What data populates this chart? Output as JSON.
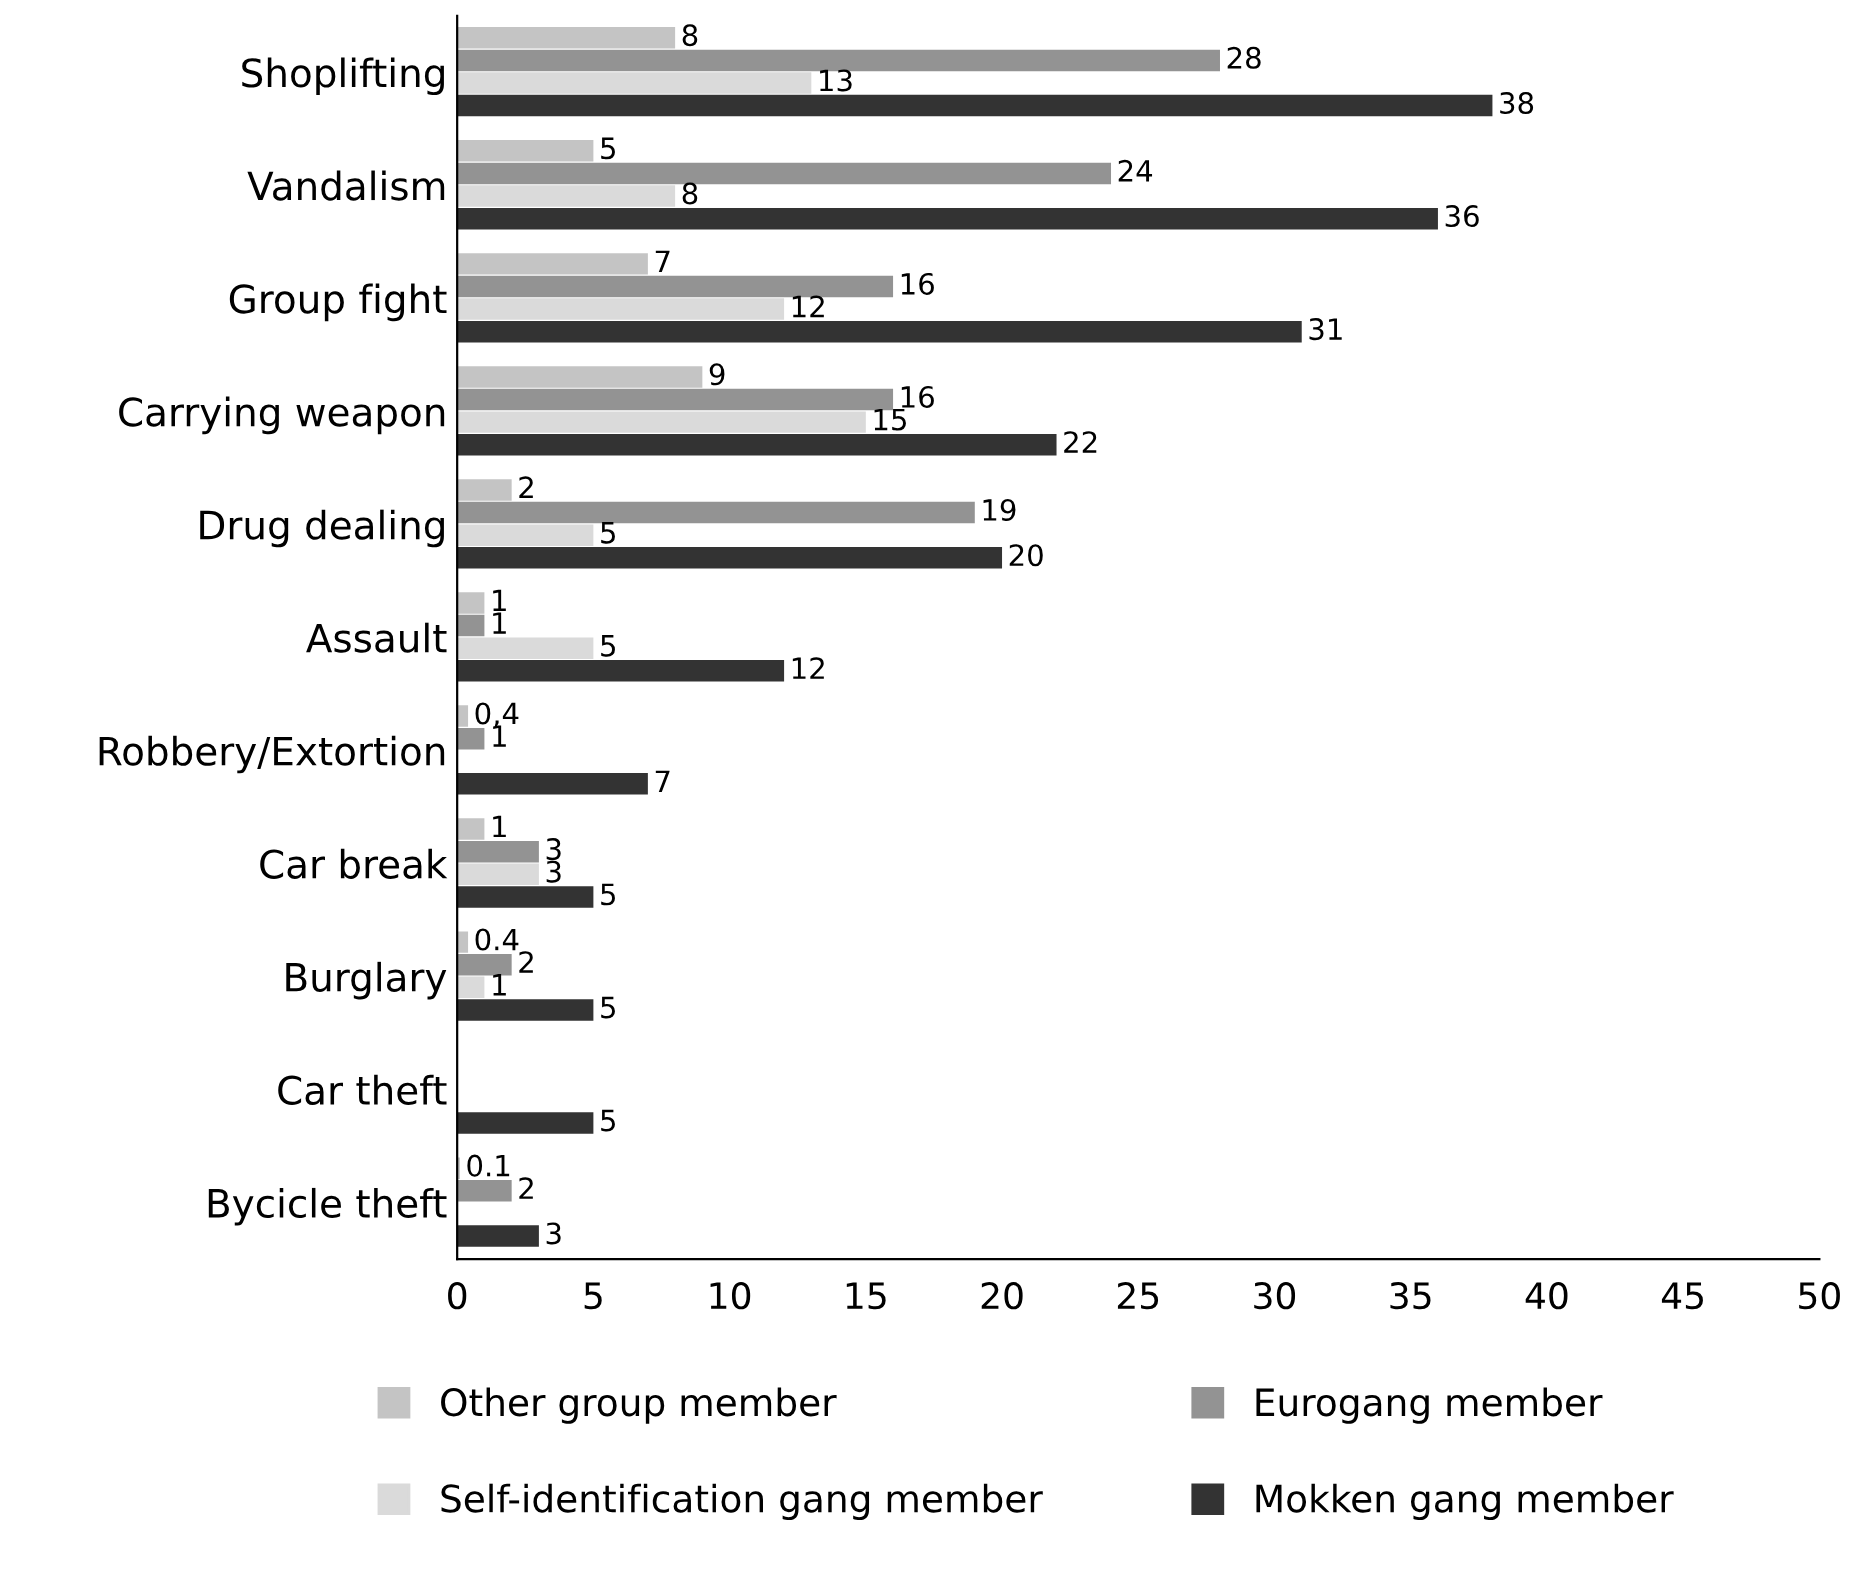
{
  "chart_data": {
    "type": "bar",
    "orientation": "horizontal",
    "categories": [
      "Shoplifting",
      "Vandalism",
      "Group fight",
      "Carrying weapon",
      "Drug dealing",
      "Assault",
      "Robbery/Extortion",
      "Car break",
      "Burglary",
      "Car theft",
      "Bycicle theft"
    ],
    "series": [
      {
        "name": "Other group member",
        "color": "#c4c4c4",
        "values": [
          8,
          5,
          7,
          9,
          2,
          1,
          0.4,
          1,
          0.4,
          null,
          0.1
        ],
        "value_labels": [
          "8",
          "5",
          "7",
          "9",
          "2",
          "1",
          "0,4",
          "1",
          "0.4",
          null,
          "0.1"
        ]
      },
      {
        "name": "Eurogang member",
        "color": "#939393",
        "values": [
          28,
          24,
          16,
          16,
          19,
          1,
          1,
          3,
          2,
          null,
          2
        ],
        "value_labels": [
          "28",
          "24",
          "16",
          "16",
          "19",
          "1",
          "1",
          "3",
          "2",
          null,
          "2"
        ]
      },
      {
        "name": "Self-identification gang member",
        "color": "#dadada",
        "values": [
          13,
          8,
          12,
          15,
          5,
          5,
          null,
          3,
          1,
          null,
          null
        ],
        "value_labels": [
          "13",
          "8",
          "12",
          "15",
          "5",
          "5",
          null,
          "3",
          "1",
          null,
          null
        ]
      },
      {
        "name": "Mokken gang member",
        "color": "#333333",
        "values": [
          38,
          36,
          31,
          22,
          20,
          12,
          7,
          5,
          5,
          5,
          3
        ],
        "value_labels": [
          "38",
          "36",
          "31",
          "22",
          "20",
          "12",
          "7",
          "5",
          "5",
          "5",
          "3"
        ]
      }
    ],
    "xlim": [
      0,
      50
    ],
    "xticks": [
      0,
      5,
      10,
      15,
      20,
      25,
      30,
      35,
      40,
      45,
      50
    ],
    "grid": false,
    "legend": "bottom"
  }
}
